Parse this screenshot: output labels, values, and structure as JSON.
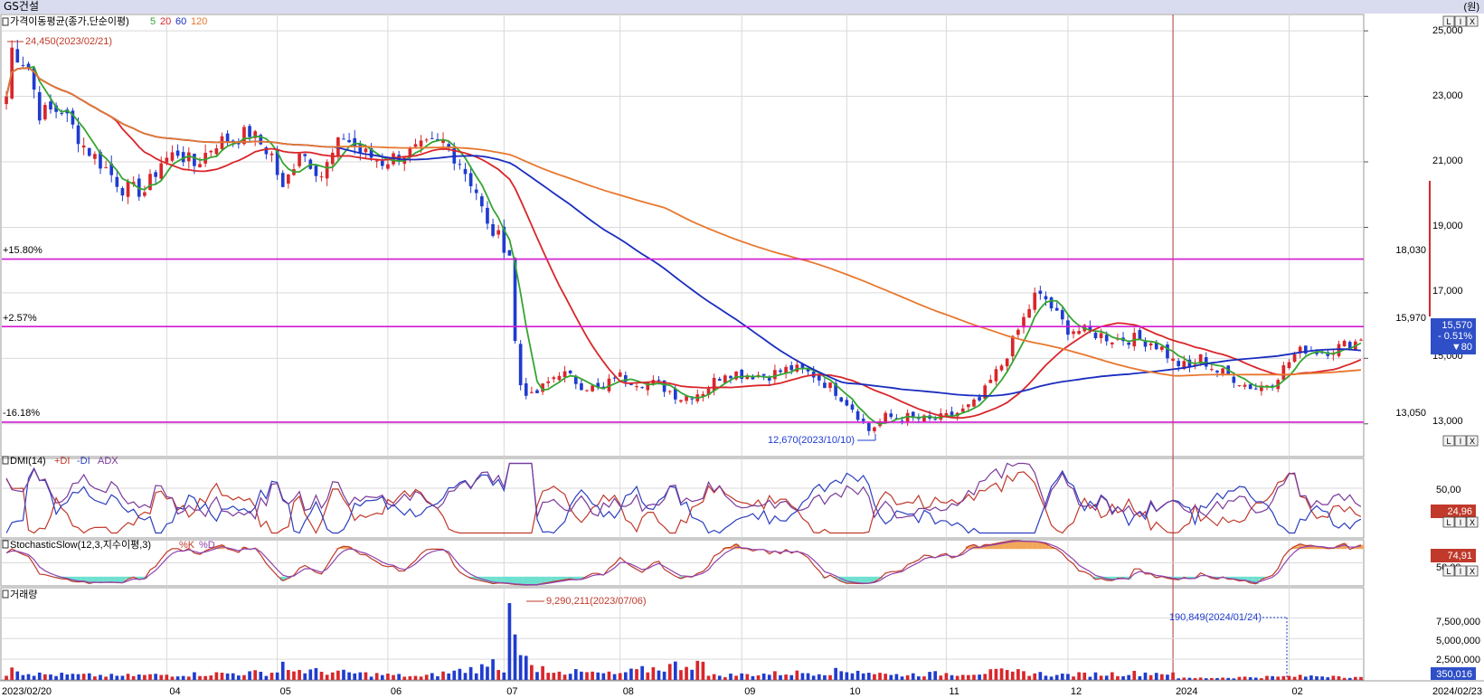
{
  "window": {
    "title": "GS건설",
    "unit_label": "(원)"
  },
  "panel_buttons": [
    "L",
    "I",
    "X"
  ],
  "colors": {
    "up": "#d9262b",
    "down": "#1f3ccf",
    "ma5": "#35a531",
    "ma20": "#d9262b",
    "ma60": "#1a2dbf",
    "ma120": "#e8772e",
    "hline": "#d21ad2",
    "grid": "#d9d9d9",
    "vline": "#b23a3a",
    "pdi": "#c0392b",
    "mdi": "#2b3fbf",
    "adx": "#7a3a9a",
    "stk_k": "#c0392b",
    "stk_d": "#8e44ad",
    "stk_fill_low": "#6ee0d0",
    "stk_fill_high": "#f2a65a"
  },
  "price_panel": {
    "label": "가격이동평균(종가,단순이평)",
    "ma_periods": [
      "5",
      "20",
      "60",
      "120"
    ],
    "y_ticks": [
      "25,000",
      "23,000",
      "21,000",
      "19,000",
      "17,000",
      "15,000",
      "13,000"
    ],
    "hlines": [
      {
        "pct": "+15.80%",
        "price": "18,030",
        "value": 18030
      },
      {
        "pct": "+2.57%",
        "price": "15,970",
        "value": 15970
      },
      {
        "pct": "-16.18%",
        "price": "13,050",
        "value": 13050
      }
    ],
    "high_annotation": "24,450(2023/02/21)",
    "low_annotation": "12,670(2023/10/10)",
    "current_price": "15,570",
    "change_pct": "- 0.51%",
    "change_abs": "▼80"
  },
  "dmi_panel": {
    "label": "DMI(14)",
    "legend": [
      "+DI",
      "-DI",
      "ADX"
    ],
    "y_tick": "50,00",
    "current": "24,96"
  },
  "stoch_panel": {
    "label": "StochasticSlow(12,3,지수이평,3)",
    "legend": [
      "%K",
      "%D"
    ],
    "y_tick": "50,00",
    "current": "74,91"
  },
  "volume_panel": {
    "label": "거래량",
    "y_ticks": [
      "7,500,000",
      "5,000,000",
      "2,500,000"
    ],
    "max_annotation": "9,290,211(2023/07/06)",
    "marker_annotation": "190,849(2024/01/24)",
    "current": "350,016"
  },
  "x_axis": {
    "start_label": "2023/02/20",
    "end_label": "2024/02/23",
    "month_labels": [
      "04",
      "05",
      "06",
      "07",
      "08",
      "09",
      "10",
      "11",
      "12",
      "2024",
      "02"
    ]
  },
  "chart_data": {
    "type": "candlestick",
    "title": "GS건설",
    "ylim": [
      12000,
      25500
    ],
    "grid": true,
    "months": [
      {
        "label": "04",
        "index": 29
      },
      {
        "label": "05",
        "index": 49
      },
      {
        "label": "06",
        "index": 69
      },
      {
        "label": "07",
        "index": 90
      },
      {
        "label": "08",
        "index": 111
      },
      {
        "label": "09",
        "index": 133
      },
      {
        "label": "10",
        "index": 152
      },
      {
        "label": "11",
        "index": 170
      },
      {
        "label": "12",
        "index": 192
      },
      {
        "label": "2024",
        "index": 211
      },
      {
        "label": "02",
        "index": 232
      }
    ],
    "close_keypoints": [
      [
        0,
        23000
      ],
      [
        1,
        24450
      ],
      [
        4,
        23900
      ],
      [
        6,
        22500
      ],
      [
        10,
        22600
      ],
      [
        14,
        21500
      ],
      [
        18,
        20800
      ],
      [
        21,
        20200
      ],
      [
        25,
        20100
      ],
      [
        28,
        21000
      ],
      [
        31,
        21300
      ],
      [
        34,
        20900
      ],
      [
        38,
        21600
      ],
      [
        41,
        21700
      ],
      [
        44,
        21900
      ],
      [
        48,
        21200
      ],
      [
        50,
        20100
      ],
      [
        53,
        21400
      ],
      [
        57,
        20600
      ],
      [
        61,
        21800
      ],
      [
        64,
        21300
      ],
      [
        68,
        21000
      ],
      [
        71,
        21200
      ],
      [
        75,
        21400
      ],
      [
        79,
        21600
      ],
      [
        82,
        21000
      ],
      [
        85,
        20100
      ],
      [
        87,
        19000
      ],
      [
        89,
        18700
      ],
      [
        91,
        18200
      ],
      [
        92,
        15500
      ],
      [
        93,
        14200
      ],
      [
        95,
        13800
      ],
      [
        97,
        14100
      ],
      [
        100,
        14600
      ],
      [
        104,
        14200
      ],
      [
        108,
        14000
      ],
      [
        110,
        14500
      ],
      [
        114,
        14300
      ],
      [
        118,
        14200
      ],
      [
        122,
        13800
      ],
      [
        126,
        14000
      ],
      [
        130,
        14600
      ],
      [
        134,
        14500
      ],
      [
        138,
        14500
      ],
      [
        142,
        14700
      ],
      [
        146,
        14500
      ],
      [
        150,
        14000
      ],
      [
        153,
        13500
      ],
      [
        155,
        13050
      ],
      [
        156,
        12800
      ],
      [
        159,
        13200
      ],
      [
        163,
        13200
      ],
      [
        167,
        13100
      ],
      [
        170,
        13200
      ],
      [
        173,
        13400
      ],
      [
        176,
        13700
      ],
      [
        178,
        14300
      ],
      [
        180,
        14800
      ],
      [
        182,
        15500
      ],
      [
        184,
        16200
      ],
      [
        186,
        16900
      ],
      [
        188,
        16800
      ],
      [
        190,
        16300
      ],
      [
        192,
        15900
      ],
      [
        196,
        15800
      ],
      [
        200,
        15600
      ],
      [
        204,
        15600
      ],
      [
        207,
        15500
      ],
      [
        209,
        15300
      ],
      [
        211,
        14900
      ],
      [
        214,
        14700
      ],
      [
        216,
        15000
      ],
      [
        219,
        14600
      ],
      [
        221,
        14500
      ],
      [
        224,
        14200
      ],
      [
        226,
        14100
      ],
      [
        229,
        14300
      ],
      [
        231,
        14700
      ],
      [
        233,
        15100
      ],
      [
        235,
        15300
      ],
      [
        238,
        15200
      ],
      [
        240,
        15300
      ],
      [
        242,
        15400
      ],
      [
        244,
        15500
      ],
      [
        245,
        15570
      ]
    ],
    "volume_keypoints": [
      [
        0,
        500000
      ],
      [
        1,
        1500000
      ],
      [
        4,
        700000
      ],
      [
        20,
        500000
      ],
      [
        49,
        900000
      ],
      [
        50,
        2200000
      ],
      [
        51,
        1200000
      ],
      [
        75,
        400000
      ],
      [
        87,
        1600000
      ],
      [
        88,
        2500000
      ],
      [
        89,
        1200000
      ],
      [
        90,
        900000
      ],
      [
        91,
        9290211
      ],
      [
        92,
        5500000
      ],
      [
        93,
        3000000
      ],
      [
        95,
        1800000
      ],
      [
        100,
        1000000
      ],
      [
        110,
        700000
      ],
      [
        126,
        2200000
      ],
      [
        127,
        500000
      ],
      [
        154,
        1100000
      ],
      [
        160,
        600000
      ],
      [
        182,
        1000000
      ],
      [
        190,
        600000
      ],
      [
        211,
        900000
      ],
      [
        212,
        190849
      ],
      [
        230,
        400000
      ],
      [
        240,
        500000
      ],
      [
        245,
        350016
      ]
    ],
    "volume_ylim": [
      0,
      10500000
    ],
    "volume_y_ticks": [
      2500000,
      5000000,
      7500000
    ],
    "series": [
      {
        "name": "5",
        "period": 5
      },
      {
        "name": "20",
        "period": 20
      },
      {
        "name": "60",
        "period": 60
      },
      {
        "name": "120",
        "period": 120
      }
    ],
    "dmi_final": 24.96,
    "stochastic_final": 74.91
  }
}
